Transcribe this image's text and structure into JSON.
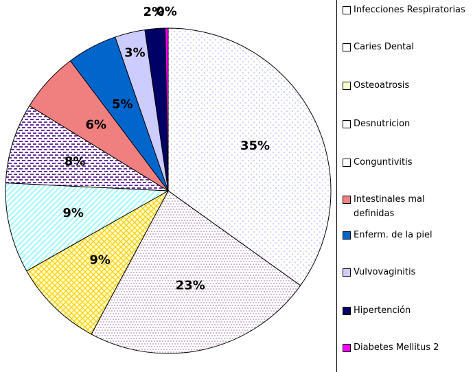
{
  "chart_data": {
    "type": "pie",
    "categories": [
      "Infecciones Respiratorias",
      "Caries Dental",
      "Osteoatrosis",
      "Desnutricion",
      "Conguntivitis",
      "Intestinales mal definidas",
      "Enferm. de la piel",
      "Vulvovaginitis",
      "Hipertención",
      "Diabetes Mellitus 2"
    ],
    "values": [
      35,
      23,
      9,
      9,
      8,
      6,
      5,
      3,
      2,
      0.3
    ],
    "value_labels": [
      "35%",
      "23%",
      "9%",
      "9%",
      "8%",
      "6%",
      "5%",
      "3%",
      "2%",
      "0%"
    ],
    "colors": [
      "#9999ff",
      "#996699",
      "#ffcc00",
      "#99ffff",
      "#663399",
      "#f08080",
      "#0066cc",
      "#ccccff",
      "#000066",
      "#ff00ff"
    ]
  }
}
